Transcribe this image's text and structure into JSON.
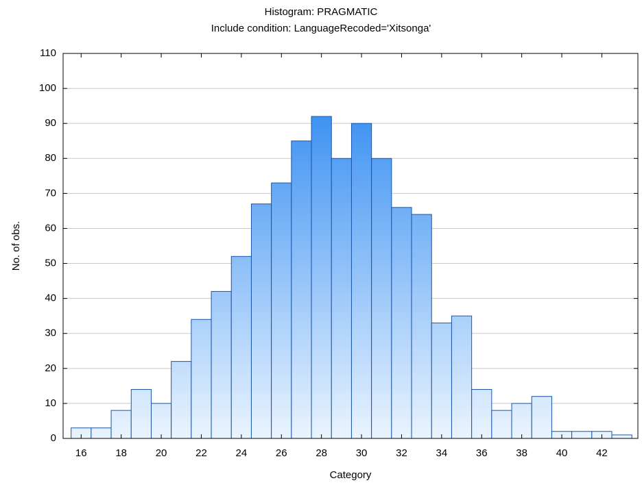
{
  "chart_data": {
    "type": "histogram",
    "title": "Histogram: PRAGMATIC",
    "subtitle": "Include condition: LanguageRecoded='Xitsonga'",
    "x_label": "Category",
    "y_label": "No. of obs.",
    "bins": [
      15.5,
      16.5,
      17.5,
      18.5,
      19.5,
      20.5,
      21.5,
      22.5,
      23.5,
      24.5,
      25.5,
      26.5,
      27.5,
      28.5,
      29.5,
      30.5,
      31.5,
      32.5,
      33.5,
      34.5,
      35.5,
      36.5,
      37.5,
      38.5,
      39.5,
      40.5,
      41.5,
      42.5,
      43.5
    ],
    "values": [
      3,
      3,
      8,
      14,
      10,
      22,
      34,
      42,
      52,
      67,
      73,
      85,
      92,
      80,
      90,
      80,
      66,
      64,
      33,
      35,
      14,
      8,
      10,
      12,
      2,
      2,
      2,
      1
    ],
    "color": "#1e80f0",
    "xlim": [
      15.1,
      43.8
    ],
    "xticks": [
      16,
      18,
      20,
      22,
      24,
      26,
      28,
      30,
      32,
      34,
      36,
      38,
      40,
      42
    ],
    "ylim": [
      0,
      110
    ],
    "yticks": [
      0,
      10,
      20,
      30,
      40,
      50,
      60,
      70,
      80,
      90,
      100,
      110
    ],
    "grid": true
  }
}
